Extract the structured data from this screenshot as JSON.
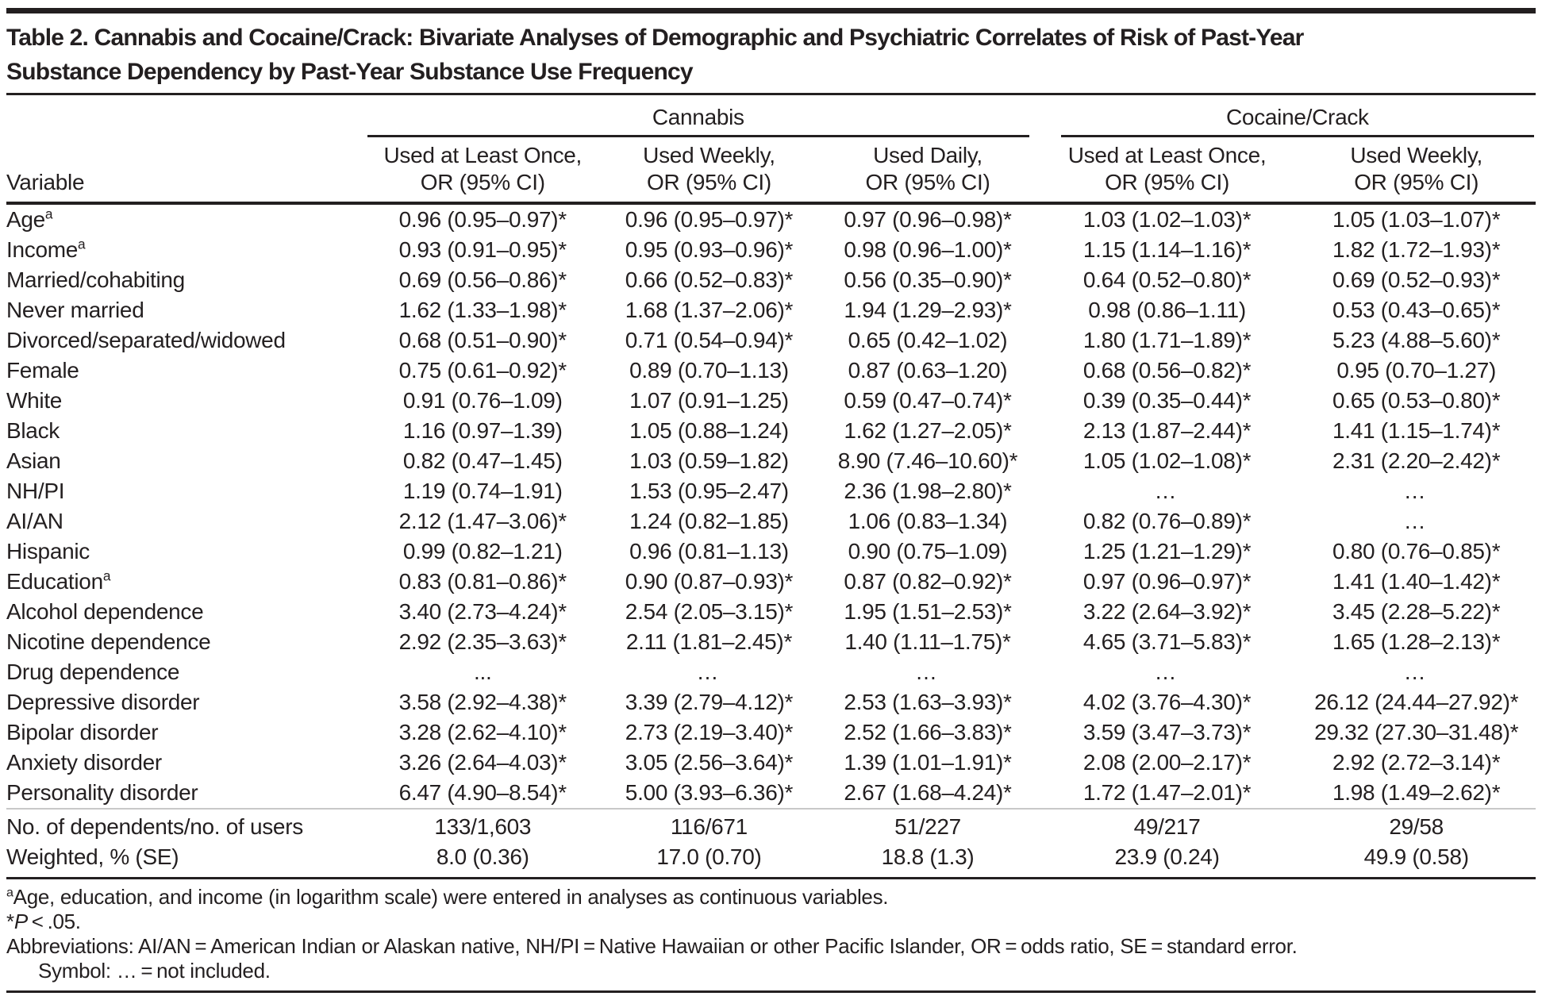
{
  "title": {
    "line1": "Table 2. Cannabis and Cocaine/Crack: Bivariate Analyses of Demographic and Psychiatric Correlates of Risk of Past-Year",
    "line2": "Substance Dependency by Past-Year Substance Use Frequency"
  },
  "table": {
    "variable_header": "Variable",
    "groups": [
      {
        "label": "Cannabis",
        "columns": [
          {
            "line1": "Used at Least Once,",
            "line2": "OR (95% CI)"
          },
          {
            "line1": "Used Weekly,",
            "line2": "OR (95% CI)"
          },
          {
            "line1": "Used Daily,",
            "line2": "OR (95% CI)"
          }
        ]
      },
      {
        "label": "Cocaine/Crack",
        "columns": [
          {
            "line1": "Used at Least Once,",
            "line2": "OR (95% CI)"
          },
          {
            "line1": "Used Weekly,",
            "line2": "OR (95% CI)"
          }
        ]
      }
    ],
    "rows": [
      {
        "variable": "Age",
        "sup": "a",
        "values": [
          "0.96 (0.95–0.97)*",
          "0.96 (0.95–0.97)*",
          "0.97 (0.96–0.98)*",
          "1.03 (1.02–1.03)*",
          "1.05 (1.03–1.07)*"
        ]
      },
      {
        "variable": "Income",
        "sup": "a",
        "values": [
          "0.93 (0.91–0.95)*",
          "0.95 (0.93–0.96)*",
          "0.98 (0.96–1.00)*",
          "1.15 (1.14–1.16)*",
          "1.82 (1.72–1.93)*"
        ]
      },
      {
        "variable": "Married/cohabiting",
        "values": [
          "0.69 (0.56–0.86)*",
          "0.66 (0.52–0.83)*",
          "0.56 (0.35–0.90)*",
          "0.64 (0.52–0.80)*",
          "0.69 (0.52–0.93)*"
        ]
      },
      {
        "variable": "Never married",
        "values": [
          "1.62 (1.33–1.98)*",
          "1.68 (1.37–2.06)*",
          "1.94 (1.29–2.93)*",
          "0.98 (0.86–1.11)",
          "0.53 (0.43–0.65)*"
        ]
      },
      {
        "variable": "Divorced/separated/widowed",
        "values": [
          "0.68 (0.51–0.90)*",
          "0.71 (0.54–0.94)*",
          "0.65 (0.42–1.02)",
          "1.80 (1.71–1.89)*",
          "5.23 (4.88–5.60)*"
        ]
      },
      {
        "variable": "Female",
        "values": [
          "0.75 (0.61–0.92)*",
          "0.89 (0.70–1.13)",
          "0.87 (0.63–1.20)",
          "0.68 (0.56–0.82)*",
          "0.95 (0.70–1.27)"
        ]
      },
      {
        "variable": "White",
        "values": [
          "0.91 (0.76–1.09)",
          "1.07 (0.91–1.25)",
          "0.59 (0.47–0.74)*",
          "0.39 (0.35–0.44)*",
          "0.65 (0.53–0.80)*"
        ]
      },
      {
        "variable": "Black",
        "values": [
          "1.16 (0.97–1.39)",
          "1.05 (0.88–1.24)",
          "1.62 (1.27–2.05)*",
          "2.13 (1.87–2.44)*",
          "1.41 (1.15–1.74)*"
        ]
      },
      {
        "variable": "Asian",
        "values": [
          "0.82 (0.47–1.45)",
          "1.03 (0.59–1.82)",
          "8.90 (7.46–10.60)*",
          "1.05 (1.02–1.08)*",
          "2.31 (2.20–2.42)*"
        ]
      },
      {
        "variable": "NH/PI",
        "values": [
          "1.19 (0.74–1.91)",
          "1.53 (0.95–2.47)",
          "2.36 (1.98–2.80)*",
          "…",
          "…"
        ]
      },
      {
        "variable": "AI/AN",
        "values": [
          "2.12 (1.47–3.06)*",
          "1.24 (0.82–1.85)",
          "1.06 (0.83–1.34)",
          "0.82 (0.76–0.89)*",
          "…"
        ]
      },
      {
        "variable": "Hispanic",
        "values": [
          "0.99 (0.82–1.21)",
          "0.96 (0.81–1.13)",
          "0.90 (0.75–1.09)",
          "1.25 (1.21–1.29)*",
          "0.80 (0.76–0.85)*"
        ]
      },
      {
        "variable": "Education",
        "sup": "a",
        "values": [
          "0.83 (0.81–0.86)*",
          "0.90 (0.87–0.93)*",
          "0.87 (0.82–0.92)*",
          "0.97 (0.96–0.97)*",
          "1.41 (1.40–1.42)*"
        ]
      },
      {
        "variable": "Alcohol dependence",
        "values": [
          "3.40 (2.73–4.24)*",
          "2.54 (2.05–3.15)*",
          "1.95 (1.51–2.53)*",
          "3.22 (2.64–3.92)*",
          "3.45 (2.28–5.22)*"
        ]
      },
      {
        "variable": "Nicotine dependence",
        "values": [
          "2.92 (2.35–3.63)*",
          "2.11 (1.81–2.45)*",
          "1.40 (1.11–1.75)*",
          "4.65 (3.71–5.83)*",
          "1.65 (1.28–2.13)*"
        ]
      },
      {
        "variable": "Drug dependence",
        "values": [
          "...",
          "…",
          "…",
          "…",
          "…"
        ]
      },
      {
        "variable": "Depressive disorder",
        "values": [
          "3.58 (2.92–4.38)*",
          "3.39 (2.79–4.12)*",
          "2.53 (1.63–3.93)*",
          "4.02 (3.76–4.30)*",
          "26.12 (24.44–27.92)*"
        ]
      },
      {
        "variable": "Bipolar disorder",
        "values": [
          "3.28 (2.62–4.10)*",
          "2.73 (2.19–3.40)*",
          "2.52 (1.66–3.83)*",
          "3.59 (3.47–3.73)*",
          "29.32 (27.30–31.48)*"
        ]
      },
      {
        "variable": "Anxiety disorder",
        "values": [
          "3.26 (2.64–4.03)*",
          "3.05 (2.56–3.64)*",
          "1.39 (1.01–1.91)*",
          "2.08 (2.00–2.17)*",
          "2.92 (2.72–3.14)*"
        ]
      },
      {
        "variable": "Personality disorder",
        "values": [
          "6.47 (4.90–8.54)*",
          "5.00 (3.93–6.36)*",
          "2.67 (1.68–4.24)*",
          "1.72 (1.47–2.01)*",
          "1.98 (1.49–2.62)*"
        ]
      }
    ],
    "summary_rows": [
      {
        "variable": "No. of dependents/no. of users",
        "values": [
          "133/1,603",
          "116/671",
          "51/227",
          "49/217",
          "29/58"
        ]
      },
      {
        "variable": "Weighted, % (SE)",
        "values": [
          "8.0 (0.36)",
          "17.0 (0.70)",
          "18.8 (1.3)",
          "23.9 (0.24)",
          "49.9 (0.58)"
        ]
      }
    ]
  },
  "footnotes": {
    "a": {
      "sup": "a",
      "text": "Age, education, and income (in logarithm scale) were entered in analyses as continuous variables."
    },
    "p": {
      "star": "*",
      "italic": "P",
      "rest": " < .05."
    },
    "abbreviations": "Abbreviations: AI/AN = American Indian or Alaskan native, NH/PI = Native Hawaiian or other Pacific Islander, OR = odds ratio, SE = standard error.",
    "symbol": "Symbol: … = not included."
  },
  "colors": {
    "text": "#231f20",
    "rule": "#231f20",
    "light_rule": "#c8c8c8"
  }
}
